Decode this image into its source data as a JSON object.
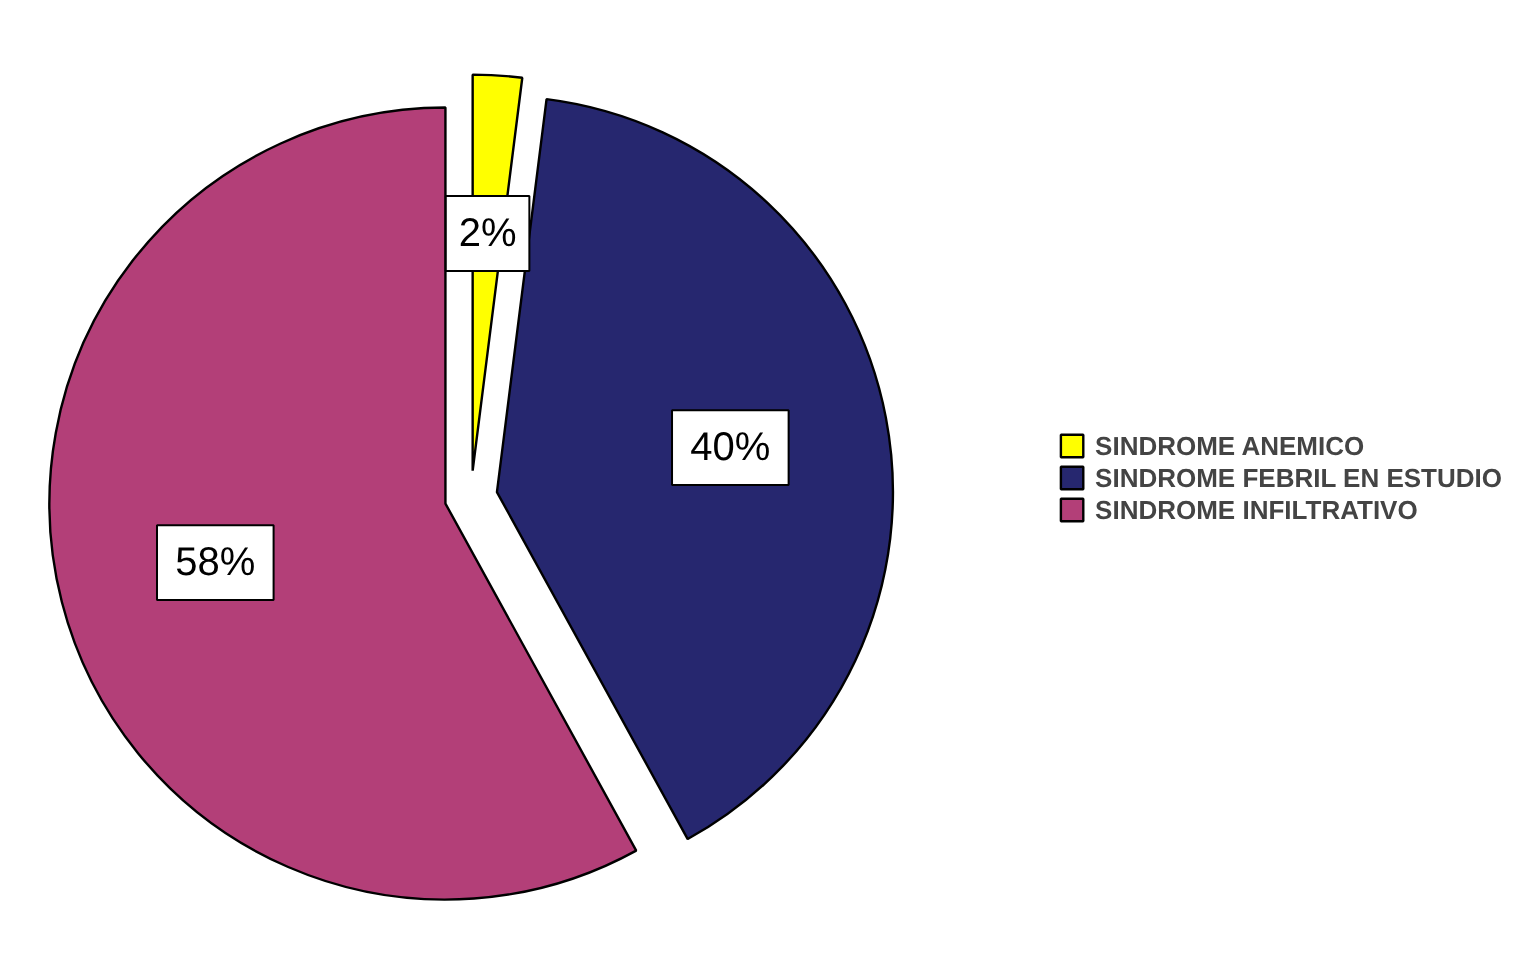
{
  "chart_data": {
    "type": "pie",
    "categories": [
      "SINDROME ANEMICO",
      "SINDROME FEBRIL EN ESTUDIO",
      "SINDROME INFILTRATIVO"
    ],
    "values": [
      2,
      40,
      58
    ],
    "colors": [
      "#ffff00",
      "#26276f",
      "#b33f78"
    ],
    "value_labels": [
      "2%",
      "40%",
      "58%"
    ],
    "legend": "right"
  }
}
